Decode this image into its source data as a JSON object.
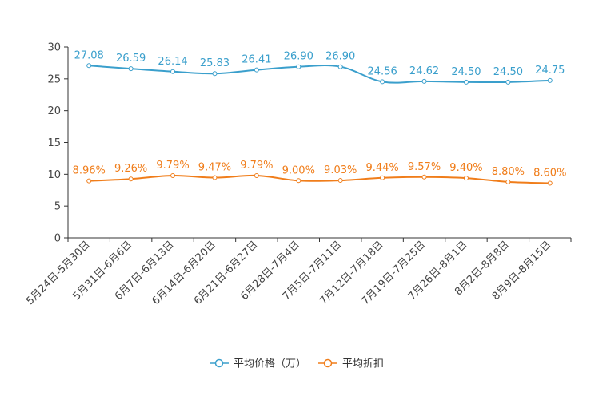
{
  "chart_data": {
    "type": "line",
    "title": "",
    "categories": [
      "5月24日-5月30日",
      "5月31日-6月6日",
      "6月7日-6月13日",
      "6月14日-6月20日",
      "6月21日-6月27日",
      "6月28日-7月4日",
      "7月5日-7月11日",
      "7月12日-7月18日",
      "7月19日-7月25日",
      "7月26日-8月1日",
      "8月2日-8月8日",
      "8月9日-8月15日"
    ],
    "ylim": [
      0,
      30
    ],
    "yticks": [
      "0",
      "5",
      "10",
      "15",
      "20",
      "25",
      "30"
    ],
    "series": [
      {
        "name": "平均价格（万）",
        "color": "#3a9fcc",
        "values": [
          27.08,
          26.59,
          26.14,
          25.83,
          26.41,
          26.9,
          26.9,
          24.56,
          24.62,
          24.5,
          24.5,
          24.75
        ],
        "labels": [
          "27.08",
          "26.59",
          "26.14",
          "25.83",
          "26.41",
          "26.90",
          "26.90",
          "24.56",
          "24.62",
          "24.50",
          "24.50",
          "24.75"
        ]
      },
      {
        "name": "平均折扣",
        "color": "#f07d1a",
        "values": [
          8.96,
          9.26,
          9.79,
          9.47,
          9.79,
          9.0,
          9.03,
          9.44,
          9.57,
          9.4,
          8.8,
          8.6
        ],
        "labels": [
          "8.96%",
          "9.26%",
          "9.79%",
          "9.47%",
          "9.79%",
          "9.00%",
          "9.03%",
          "9.44%",
          "9.57%",
          "9.40%",
          "8.80%",
          "8.60%"
        ]
      }
    ],
    "legend_position": "bottom-center"
  }
}
